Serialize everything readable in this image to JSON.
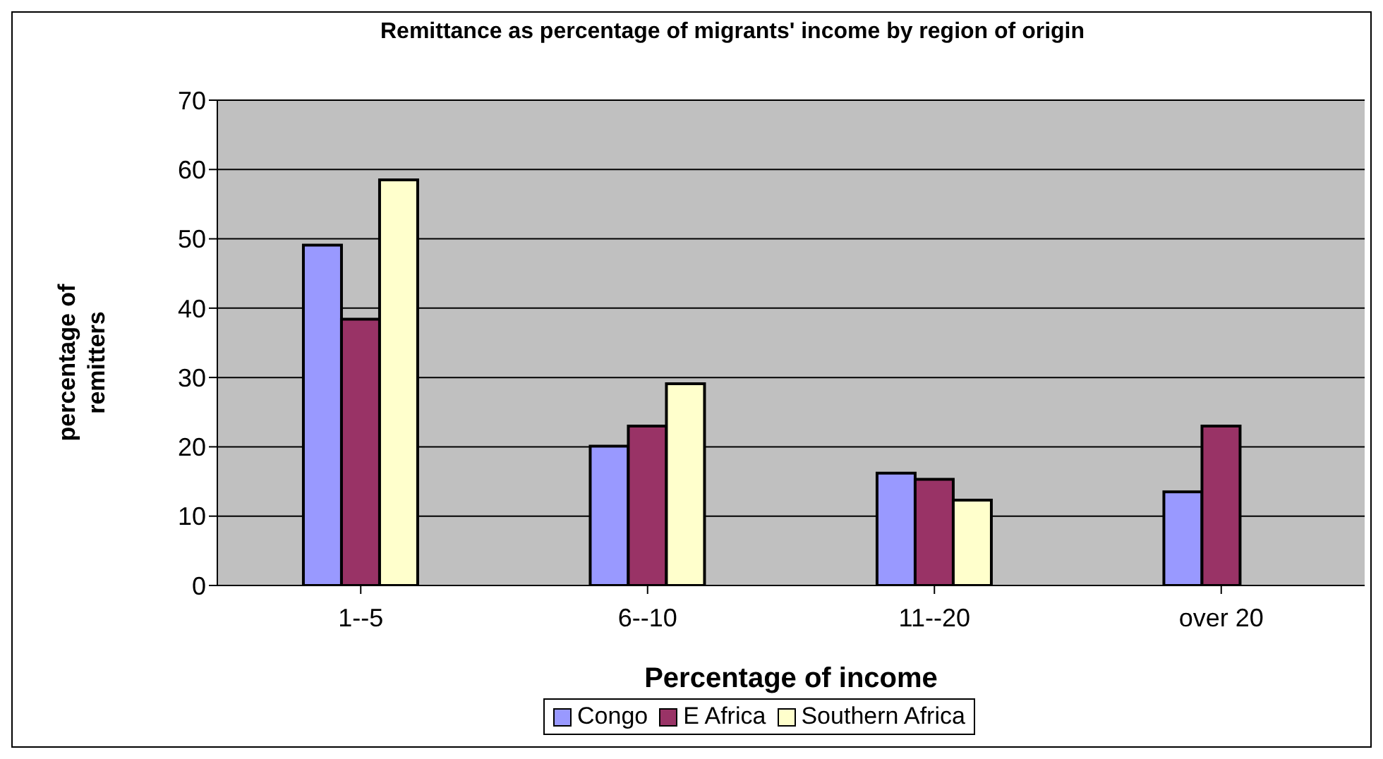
{
  "chart_data": {
    "type": "bar",
    "title": "Remittance as percentage of migrants' income by region of origin",
    "xlabel": "Percentage of income",
    "ylabel": "percentage of remitters",
    "categories": [
      "1--5",
      "6--10",
      "11--20",
      "over 20"
    ],
    "series": [
      {
        "name": "Congo",
        "color": "#9999ff",
        "values": [
          49.1,
          20.1,
          16.2,
          13.5
        ]
      },
      {
        "name": "E Africa",
        "color": "#993366",
        "values": [
          38.4,
          23.0,
          15.3,
          23.0
        ]
      },
      {
        "name": "Southern Africa",
        "color": "#ffffcc",
        "values": [
          58.5,
          29.1,
          12.3,
          null
        ]
      }
    ],
    "ylim": [
      0,
      70
    ],
    "yticks": [
      0,
      10,
      20,
      30,
      40,
      50,
      60,
      70
    ],
    "grid": "y",
    "legend": "bottom"
  }
}
